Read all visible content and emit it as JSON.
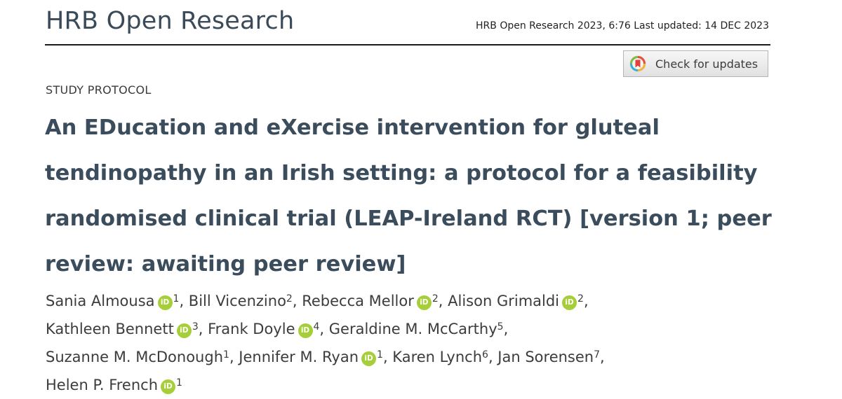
{
  "header": {
    "journal_name": "HRB Open Research",
    "citation": "HRB Open Research 2023, 6:76 Last updated: 14 DEC 2023"
  },
  "check_updates": {
    "label": "Check for updates",
    "icon": "crossmark-icon"
  },
  "article": {
    "type": "STUDY PROTOCOL",
    "title_lines": [
      "An EDucation and eXercise intervention for gluteal",
      "tendinopathy in an Irish setting: a protocol for a feasibility",
      "randomised clinical trial (LEAP-Ireland RCT) [version 1; peer",
      "review: awaiting peer review]"
    ]
  },
  "orcid_badge": {
    "text": "iD",
    "color": "#a6ce39"
  },
  "authors": [
    {
      "name": "Sania Almousa",
      "orcid": true,
      "aff": "1",
      "sep": ", "
    },
    {
      "name": "Bill Vicenzino",
      "orcid": false,
      "aff": "2",
      "sep": ", "
    },
    {
      "name": "Rebecca Mellor",
      "orcid": true,
      "aff": "2",
      "sep": ", "
    },
    {
      "name": "Alison Grimaldi",
      "orcid": true,
      "aff": "2",
      "sep": ","
    },
    {
      "name": "Kathleen Bennett",
      "orcid": true,
      "aff": "3",
      "sep": ", "
    },
    {
      "name": "Frank Doyle",
      "orcid": true,
      "aff": "4",
      "sep": ", "
    },
    {
      "name": "Geraldine M. McCarthy",
      "orcid": false,
      "aff": "5",
      "sep": ","
    },
    {
      "name": "Suzanne M. McDonough",
      "orcid": false,
      "aff": "1",
      "sep": ", "
    },
    {
      "name": "Jennifer M. Ryan",
      "orcid": true,
      "aff": "1",
      "sep": ", "
    },
    {
      "name": "Karen Lynch",
      "orcid": false,
      "aff": "6",
      "sep": ", "
    },
    {
      "name": "Jan Sorensen",
      "orcid": false,
      "aff": "7",
      "sep": ","
    },
    {
      "name": "Helen P. French",
      "orcid": true,
      "aff": "1",
      "sep": ""
    }
  ],
  "colors": {
    "title": "#3b4d5c",
    "journal": "#3b4a59",
    "orcid": "#a6ce39"
  }
}
